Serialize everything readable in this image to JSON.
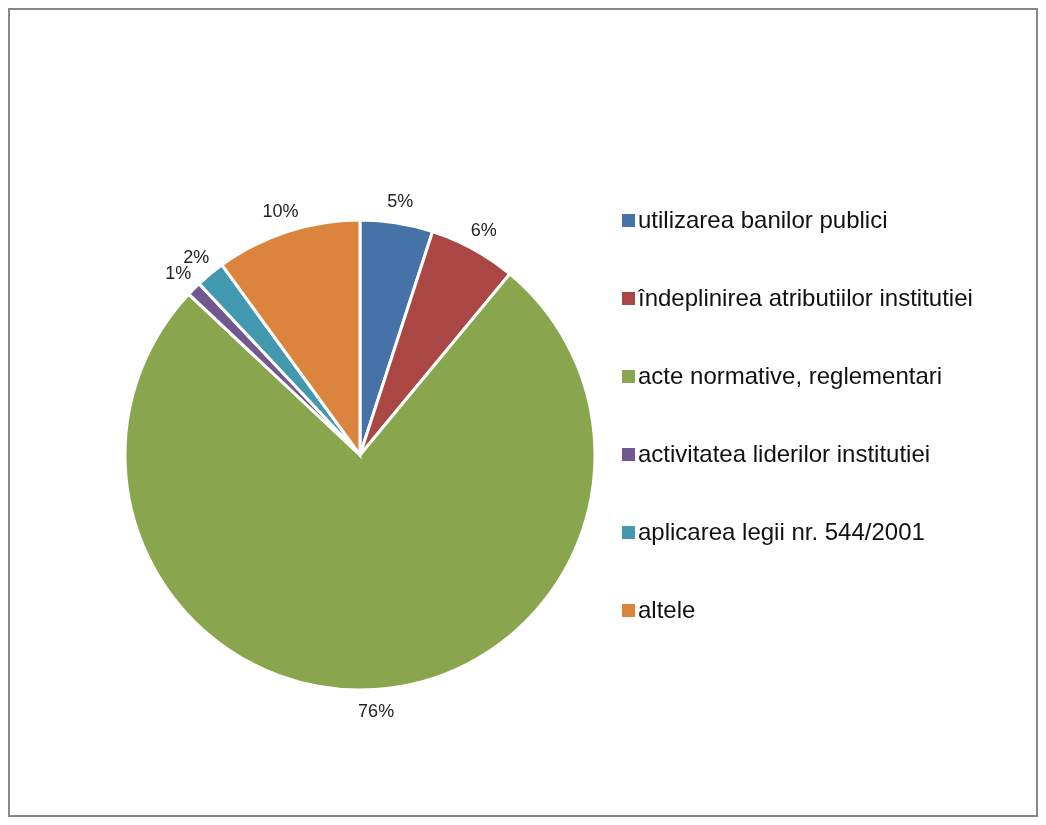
{
  "chart_data": {
    "type": "pie",
    "categories": [
      "utilizarea banilor publici",
      "îndeplinirea atributiilor institutiei",
      "acte normative, reglementari",
      "activitatea liderilor institutiei",
      "aplicarea legii nr. 544/2001",
      "altele"
    ],
    "values": [
      5,
      6,
      76,
      1,
      2,
      10
    ],
    "colors": [
      "#4572a7",
      "#aa4643",
      "#89a54e",
      "#71588f",
      "#4198af",
      "#db843d"
    ],
    "value_labels": [
      "5%",
      "6%",
      "76%",
      "1%",
      "2%",
      "10%"
    ],
    "legend": "right"
  }
}
